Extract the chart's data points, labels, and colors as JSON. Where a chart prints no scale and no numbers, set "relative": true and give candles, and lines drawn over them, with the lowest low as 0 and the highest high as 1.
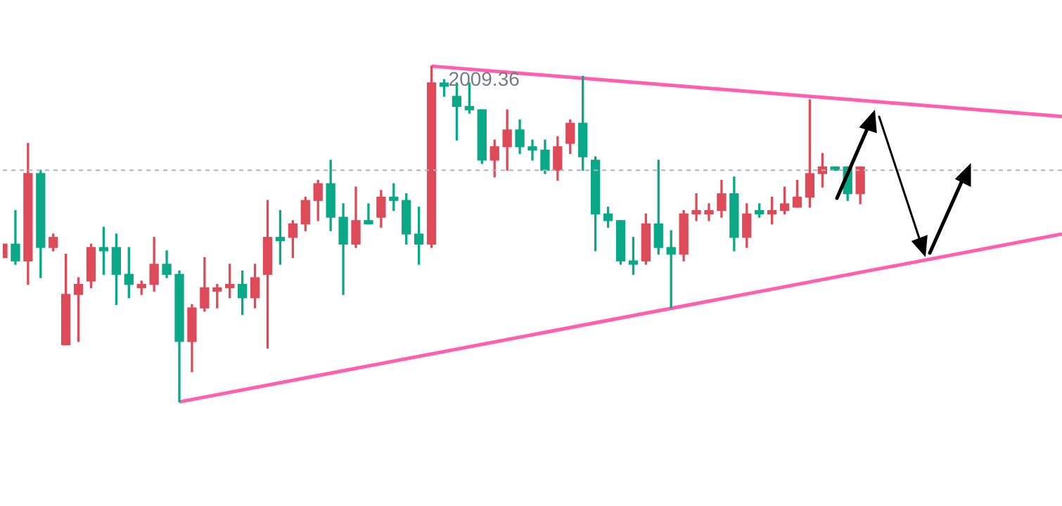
{
  "chart_data": {
    "type": "candlestick",
    "relative": true,
    "legend": false,
    "tick_labels": false,
    "categories": [
      null,
      null,
      null,
      null,
      null,
      null,
      null,
      null,
      null,
      null,
      null,
      null,
      null,
      null,
      null,
      null,
      null,
      null,
      null,
      null,
      null,
      null,
      null,
      null,
      null,
      null,
      null,
      null,
      null,
      null,
      null,
      null,
      null,
      null,
      null,
      null,
      null,
      null,
      null,
      null,
      null,
      null,
      null,
      null,
      null,
      null,
      null,
      null,
      null,
      null,
      null,
      null,
      null,
      null,
      null,
      null,
      null,
      null,
      null,
      null,
      null,
      null,
      null,
      null,
      null,
      null,
      null,
      null,
      null,
      null,
      null,
      null,
      null,
      null,
      null,
      null,
      null,
      null,
      null,
      null,
      null,
      null,
      null,
      null,
      null
    ],
    "ohlc": [
      [
        0.43,
        0.47,
        0.43,
        0.47
      ],
      [
        0.47,
        0.57,
        0.41,
        0.42
      ],
      [
        0.42,
        0.77,
        0.35,
        0.68
      ],
      [
        0.68,
        0.69,
        0.37,
        0.46
      ],
      [
        0.46,
        0.5,
        0.45,
        0.49
      ],
      [
        0.17,
        0.44,
        0.17,
        0.32
      ],
      [
        0.32,
        0.37,
        0.18,
        0.35
      ],
      [
        0.36,
        0.47,
        0.34,
        0.46
      ],
      [
        0.46,
        0.52,
        0.38,
        0.45
      ],
      [
        0.46,
        0.5,
        0.29,
        0.38
      ],
      [
        0.38,
        0.46,
        0.31,
        0.35
      ],
      [
        0.34,
        0.36,
        0.32,
        0.35
      ],
      [
        0.35,
        0.49,
        0.33,
        0.41
      ],
      [
        0.41,
        0.45,
        0.37,
        0.38
      ],
      [
        0.38,
        0.39,
        0,
        0.18
      ],
      [
        0.18,
        0.29,
        0.09,
        0.28
      ],
      [
        0.28,
        0.43,
        0.27,
        0.34
      ],
      [
        0.33,
        0.35,
        0.28,
        0.34
      ],
      [
        0.34,
        0.41,
        0.31,
        0.35
      ],
      [
        0.35,
        0.39,
        0.26,
        0.31
      ],
      [
        0.31,
        0.41,
        0.28,
        0.37
      ],
      [
        0.38,
        0.6,
        0.16,
        0.49
      ],
      [
        0.49,
        0.57,
        0.41,
        0.48
      ],
      [
        0.49,
        0.54,
        0.43,
        0.53
      ],
      [
        0.53,
        0.61,
        0.51,
        0.6
      ],
      [
        0.6,
        0.66,
        0.54,
        0.65
      ],
      [
        0.65,
        0.72,
        0.51,
        0.55
      ],
      [
        0.55,
        0.59,
        0.32,
        0.47
      ],
      [
        0.47,
        0.64,
        0.46,
        0.54
      ],
      [
        0.54,
        0.59,
        0.53,
        0.53
      ],
      [
        0.55,
        0.63,
        0.52,
        0.61
      ],
      [
        0.61,
        0.65,
        0.57,
        0.6
      ],
      [
        0.6,
        0.62,
        0.47,
        0.5
      ],
      [
        0.5,
        0.58,
        0.41,
        0.47
      ],
      [
        0.47,
        1,
        0.46,
        0.95
      ],
      [
        0.95,
        0.96,
        0.91,
        0.94
      ],
      [
        0.91,
        0.95,
        0.78,
        0.88
      ],
      [
        0.88,
        0.95,
        0.86,
        0.87
      ],
      [
        0.87,
        0.87,
        0.71,
        0.72
      ],
      [
        0.72,
        0.78,
        0.67,
        0.76
      ],
      [
        0.76,
        0.87,
        0.69,
        0.81
      ],
      [
        0.81,
        0.84,
        0.74,
        0.76
      ],
      [
        0.76,
        0.78,
        0.72,
        0.75
      ],
      [
        0.75,
        0.78,
        0.68,
        0.69
      ],
      [
        0.69,
        0.79,
        0.66,
        0.76
      ],
      [
        0.77,
        0.84,
        0.74,
        0.83
      ],
      [
        0.83,
        0.97,
        0.69,
        0.73
      ],
      [
        0.72,
        0.73,
        0.45,
        0.56
      ],
      [
        0.56,
        0.58,
        0.52,
        0.54
      ],
      [
        0.54,
        0.54,
        0.41,
        0.42
      ],
      [
        0.42,
        0.49,
        0.38,
        0.41
      ],
      [
        0.42,
        0.56,
        0.41,
        0.53
      ],
      [
        0.53,
        0.72,
        0.44,
        0.46
      ],
      [
        0.46,
        0.51,
        0.28,
        0.44
      ],
      [
        0.44,
        0.57,
        0.42,
        0.56
      ],
      [
        0.56,
        0.62,
        0.54,
        0.57
      ],
      [
        0.56,
        0.59,
        0.54,
        0.57
      ],
      [
        0.57,
        0.66,
        0.55,
        0.62
      ],
      [
        0.62,
        0.67,
        0.45,
        0.49
      ],
      [
        0.49,
        0.59,
        0.46,
        0.56
      ],
      [
        0.57,
        0.59,
        0.55,
        0.56
      ],
      [
        0.56,
        0.61,
        0.53,
        0.57
      ],
      [
        0.57,
        0.64,
        0.56,
        0.59
      ],
      [
        0.58,
        0.66,
        0.58,
        0.61
      ],
      [
        0.61,
        0.9,
        0.58,
        0.68
      ],
      [
        0.68,
        0.74,
        0.64,
        0.7
      ],
      [
        0.7,
        0.7,
        0.69,
        0.69
      ],
      [
        0.7,
        0.7,
        0.6,
        0.62
      ],
      [
        0.62,
        0.7,
        0.59,
        0.7
      ],
      null,
      null,
      null,
      null,
      null,
      null,
      null,
      null,
      null,
      null,
      null,
      null,
      null,
      null,
      null,
      null
    ],
    "colors": [
      "#dd4b59",
      "#0ba887",
      "#dd4b59",
      "#0ba887",
      "#dd4b59",
      "#dd4b59",
      "#dd4b59",
      "#dd4b59",
      "#0ba887",
      "#0ba887",
      "#0ba887",
      "#dd4b59",
      "#dd4b59",
      "#0ba887",
      "#0ba887",
      "#dd4b59",
      "#dd4b59",
      "#dd4b59",
      "#dd4b59",
      "#0ba887",
      "#dd4b59",
      "#dd4b59",
      "#0ba887",
      "#dd4b59",
      "#dd4b59",
      "#dd4b59",
      "#0ba887",
      "#0ba887",
      "#dd4b59",
      "#0ba887",
      "#dd4b59",
      "#0ba887",
      "#0ba887",
      "#0ba887",
      "#dd4b59",
      "#0ba887",
      "#0ba887",
      "#0ba887",
      "#0ba887",
      "#dd4b59",
      "#dd4b59",
      "#0ba887",
      "#0ba887",
      "#0ba887",
      "#dd4b59",
      "#dd4b59",
      "#0ba887",
      "#0ba887",
      "#0ba887",
      "#0ba887",
      "#0ba887",
      "#dd4b59",
      "#0ba887",
      "#0ba887",
      "#dd4b59",
      "#dd4b59",
      "#dd4b59",
      "#dd4b59",
      "#0ba887",
      "#dd4b59",
      "#0ba887",
      "#dd4b59",
      "#dd4b59",
      "#dd4b59",
      "#dd4b59",
      "#dd4b59",
      "#0ba887",
      "#0ba887",
      "#dd4b59",
      null,
      null,
      null,
      null,
      null,
      null,
      null,
      null,
      null,
      null,
      null,
      null,
      null,
      null,
      null,
      null
    ],
    "series": [
      {
        "type": "line",
        "color": "#ff5fae",
        "values": [
          null,
          null,
          null,
          null,
          null,
          null,
          null,
          null,
          null,
          null,
          null,
          null,
          null,
          null,
          0,
          null,
          null,
          null,
          null,
          null,
          null,
          null,
          null,
          null,
          null,
          null,
          null,
          null,
          null,
          null,
          null,
          null,
          null,
          null,
          null,
          null,
          null,
          null,
          null,
          null,
          null,
          null,
          null,
          null,
          null,
          null,
          null,
          null,
          null,
          null,
          null,
          null,
          null,
          null,
          null,
          null,
          null,
          null,
          null,
          null,
          null,
          null,
          null,
          null,
          null,
          null,
          null,
          null,
          null,
          null,
          null,
          null,
          null,
          null,
          null,
          null,
          null,
          null,
          null,
          null,
          null,
          null,
          null,
          null,
          0.5
        ]
      },
      {
        "type": "line",
        "color": "#ff5fae",
        "values": [
          null,
          null,
          null,
          null,
          null,
          null,
          null,
          null,
          null,
          null,
          null,
          null,
          null,
          null,
          null,
          null,
          null,
          null,
          null,
          null,
          null,
          null,
          null,
          null,
          null,
          null,
          null,
          null,
          null,
          null,
          null,
          null,
          null,
          null,
          1,
          null,
          null,
          null,
          null,
          null,
          null,
          null,
          null,
          null,
          null,
          null,
          null,
          null,
          null,
          null,
          null,
          null,
          null,
          null,
          null,
          null,
          null,
          null,
          null,
          null,
          null,
          null,
          null,
          null,
          null,
          null,
          null,
          null,
          null,
          null,
          null,
          null,
          null,
          null,
          null,
          null,
          null,
          null,
          null,
          null,
          null,
          null,
          null,
          null,
          0.85
        ]
      }
    ],
    "ref_lines": [
      {
        "axis": "y",
        "value": 0.69,
        "color": "#b2b5be",
        "line_style": "dashed"
      }
    ],
    "annotations": [
      {
        "text": "2009.36",
        "y": 1
      }
    ]
  }
}
